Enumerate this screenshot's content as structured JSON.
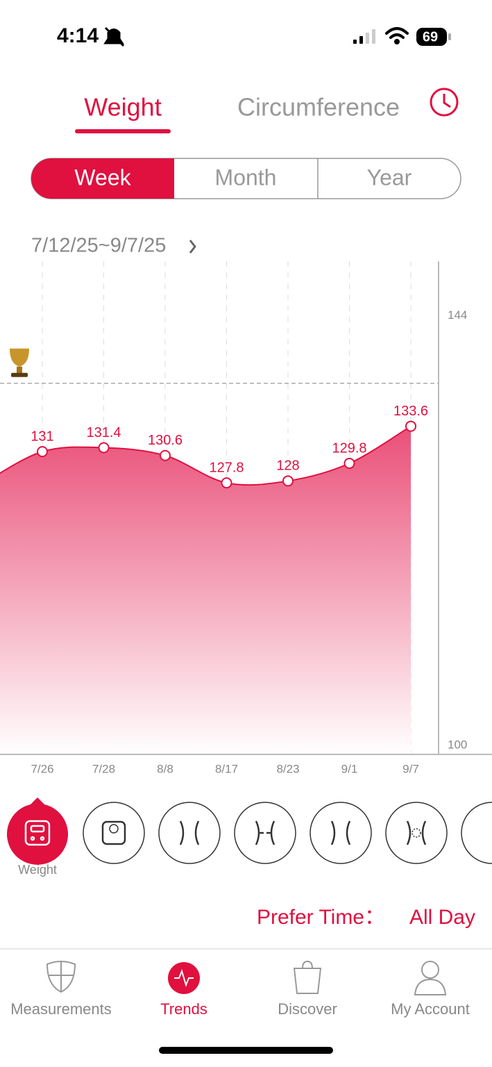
{
  "status_bar": {
    "time": "4:14",
    "battery": "69"
  },
  "tabs": [
    "Weight",
    "Circumference"
  ],
  "periods": [
    "Week",
    "Month",
    "Year"
  ],
  "date_range": "7/12/25~9/7/25",
  "chart_data": {
    "type": "area",
    "categories": [
      null,
      "7/26",
      "7/28",
      "8/8",
      "8/17",
      "8/23",
      "9/1",
      "9/7"
    ],
    "values": [
      127.6,
      131,
      131.4,
      130.6,
      127.8,
      128,
      129.8,
      133.6
    ],
    "color": "#e0103f",
    "ylim": [
      100,
      150
    ],
    "yticks": [
      100,
      144
    ],
    "reference_line": 138
  },
  "metric_label": "Weight",
  "prefer_time": {
    "label": "Prefer Time：",
    "value": "All Day"
  },
  "nav": [
    "Measurements",
    "Trends",
    "Discover",
    "My Account"
  ]
}
